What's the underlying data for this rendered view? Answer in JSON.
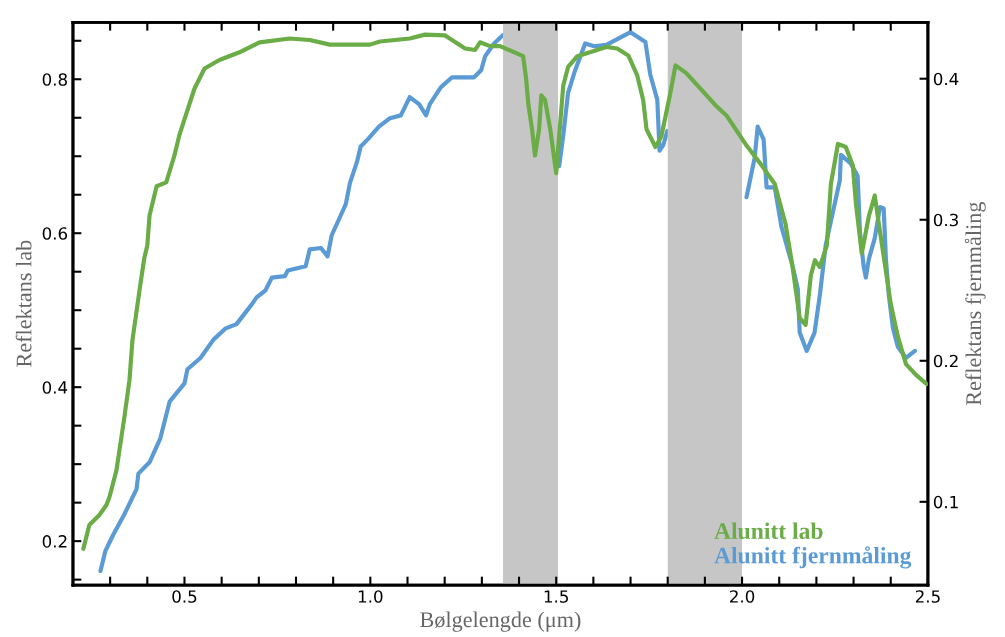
{
  "chart_data": {
    "type": "line",
    "xlabel": "Bølgelengde (μm)",
    "ylabel": "Reflektans lab",
    "y2label": "Reflektans fjernmåling",
    "xlim": [
      0.2,
      2.5
    ],
    "ylim": [
      0.143,
      0.874
    ],
    "y2lim": [
      0.041,
      0.44
    ],
    "xticks": [
      {
        "value": 0.3,
        "label": null
      },
      {
        "value": 0.4,
        "label": null
      },
      {
        "value": 0.5,
        "label": "0.5"
      },
      {
        "value": 0.6,
        "label": null
      },
      {
        "value": 0.7,
        "label": null
      },
      {
        "value": 0.8,
        "label": null
      },
      {
        "value": 0.9,
        "label": null
      },
      {
        "value": 1.0,
        "label": "1.0"
      },
      {
        "value": 1.1,
        "label": null
      },
      {
        "value": 1.2,
        "label": null
      },
      {
        "value": 1.3,
        "label": null
      },
      {
        "value": 1.4,
        "label": null
      },
      {
        "value": 1.5,
        "label": "1.5"
      },
      {
        "value": 1.6,
        "label": null
      },
      {
        "value": 1.7,
        "label": null
      },
      {
        "value": 1.8,
        "label": null
      },
      {
        "value": 1.9,
        "label": null
      },
      {
        "value": 2.0,
        "label": "2.0"
      },
      {
        "value": 2.1,
        "label": null
      },
      {
        "value": 2.2,
        "label": null
      },
      {
        "value": 2.3,
        "label": null
      },
      {
        "value": 2.4,
        "label": null
      },
      {
        "value": 2.5,
        "label": "2.5"
      }
    ],
    "yticks": [
      {
        "value": 0.15,
        "label": null
      },
      {
        "value": 0.2,
        "label": "0.2"
      },
      {
        "value": 0.25,
        "label": null
      },
      {
        "value": 0.3,
        "label": null
      },
      {
        "value": 0.35,
        "label": null
      },
      {
        "value": 0.4,
        "label": "0.4"
      },
      {
        "value": 0.45,
        "label": null
      },
      {
        "value": 0.5,
        "label": null
      },
      {
        "value": 0.55,
        "label": null
      },
      {
        "value": 0.6,
        "label": "0.6"
      },
      {
        "value": 0.65,
        "label": null
      },
      {
        "value": 0.7,
        "label": null
      },
      {
        "value": 0.75,
        "label": null
      },
      {
        "value": 0.8,
        "label": "0.8"
      },
      {
        "value": 0.85,
        "label": null
      }
    ],
    "y2ticks": [
      0.1,
      0.2,
      0.3,
      0.4
    ],
    "bands": [
      {
        "axis": "x",
        "from": 1.357,
        "to": 1.505,
        "color": "#c6c6c6"
      },
      {
        "axis": "x",
        "from": 1.8,
        "to": 2.0,
        "color": "#c6c6c6"
      }
    ],
    "grid": false,
    "legend": "bottom right",
    "line_style": "solid",
    "marker": "none",
    "series": [
      {
        "name": "Alunitt lab",
        "color": "#6aac46",
        "x": [
          0.228,
          0.244,
          0.271,
          0.29,
          0.298,
          0.317,
          0.325,
          0.338,
          0.352,
          0.36,
          0.379,
          0.392,
          0.4,
          0.406,
          0.425,
          0.451,
          0.473,
          0.486,
          0.508,
          0.527,
          0.554,
          0.594,
          0.648,
          0.702,
          0.783,
          0.837,
          0.891,
          0.999,
          1.026,
          1.106,
          1.147,
          1.201,
          1.255,
          1.282,
          1.295,
          1.322,
          1.349,
          1.411,
          1.419,
          1.425,
          1.435,
          1.443,
          1.454,
          1.46,
          1.47,
          1.484,
          1.5,
          1.519,
          1.532,
          1.557,
          1.597,
          1.635,
          1.664,
          1.694,
          1.718,
          1.734,
          1.743,
          1.767,
          1.783,
          1.807,
          1.821,
          1.85,
          1.88,
          1.929,
          1.958,
          2.009,
          2.047,
          2.088,
          2.117,
          2.136,
          2.155,
          2.171,
          2.185,
          2.196,
          2.209,
          2.228,
          2.239,
          2.258,
          2.279,
          2.298,
          2.306,
          2.322,
          2.341,
          2.357,
          2.365,
          2.381,
          2.4,
          2.419,
          2.441,
          2.468,
          2.497
        ],
        "values": [
          0.19,
          0.221,
          0.234,
          0.247,
          0.257,
          0.292,
          0.318,
          0.36,
          0.409,
          0.461,
          0.526,
          0.568,
          0.584,
          0.623,
          0.661,
          0.666,
          0.701,
          0.727,
          0.76,
          0.788,
          0.814,
          0.825,
          0.835,
          0.848,
          0.853,
          0.851,
          0.845,
          0.845,
          0.849,
          0.853,
          0.858,
          0.857,
          0.84,
          0.838,
          0.848,
          0.843,
          0.843,
          0.83,
          0.801,
          0.768,
          0.735,
          0.701,
          0.735,
          0.779,
          0.773,
          0.735,
          0.678,
          0.792,
          0.816,
          0.83,
          0.836,
          0.842,
          0.84,
          0.831,
          0.805,
          0.773,
          0.735,
          0.712,
          0.726,
          0.782,
          0.818,
          0.808,
          0.792,
          0.766,
          0.753,
          0.716,
          0.692,
          0.664,
          0.612,
          0.556,
          0.49,
          0.481,
          0.545,
          0.565,
          0.556,
          0.584,
          0.664,
          0.716,
          0.712,
          0.688,
          0.64,
          0.574,
          0.622,
          0.649,
          0.622,
          0.57,
          0.508,
          0.466,
          0.43,
          0.416,
          0.404
        ]
      },
      {
        "name": "Alunitt fjernmåling",
        "color": "#5b9bd5",
        "axis": "y2",
        "x": [
          0.274,
          0.287,
          0.309,
          0.338,
          0.371,
          0.376,
          0.406,
          0.435,
          0.46,
          0.5,
          0.508,
          0.543,
          0.578,
          0.611,
          0.64,
          0.681,
          0.694,
          0.718,
          0.735,
          0.77,
          0.778,
          0.826,
          0.837,
          0.867,
          0.885,
          0.896,
          0.915,
          0.934,
          0.945,
          0.964,
          0.974,
          0.993,
          1.023,
          1.053,
          1.082,
          1.106,
          1.131,
          1.15,
          1.16,
          1.19,
          1.22,
          1.279,
          1.298,
          1.309,
          1.333,
          1.357,
          1.43,
          1.508,
          1.519,
          1.532,
          1.551,
          1.578,
          1.602,
          1.635,
          1.7,
          1.74,
          1.753,
          1.772,
          1.778,
          1.788,
          1.799,
          1.9,
          2.012,
          2.034,
          2.042,
          2.058,
          2.066,
          2.088,
          2.106,
          2.136,
          2.15,
          2.155,
          2.174,
          2.195,
          2.209,
          2.225,
          2.244,
          2.263,
          2.266,
          2.292,
          2.311,
          2.317,
          2.327,
          2.333,
          2.341,
          2.357,
          2.371,
          2.381,
          2.387,
          2.395,
          2.406,
          2.419,
          2.441,
          2.465
        ],
        "values": [
          0.051,
          0.065,
          0.077,
          0.091,
          0.109,
          0.12,
          0.128,
          0.145,
          0.171,
          0.184,
          0.194,
          0.202,
          0.215,
          0.223,
          0.226,
          0.24,
          0.245,
          0.25,
          0.259,
          0.26,
          0.264,
          0.267,
          0.279,
          0.28,
          0.274,
          0.289,
          0.3,
          0.311,
          0.326,
          0.341,
          0.352,
          0.357,
          0.366,
          0.372,
          0.374,
          0.387,
          0.382,
          0.374,
          0.382,
          0.394,
          0.401,
          0.401,
          0.406,
          0.416,
          0.425,
          0.431,
          null,
          0.338,
          0.36,
          0.39,
          0.406,
          0.425,
          0.423,
          0.424,
          0.433,
          0.426,
          0.403,
          0.385,
          0.349,
          0.353,
          0.363,
          null,
          0.316,
          0.344,
          0.366,
          0.357,
          0.323,
          0.323,
          0.295,
          0.267,
          0.251,
          0.22,
          0.207,
          0.22,
          0.246,
          0.282,
          0.305,
          0.328,
          0.346,
          0.34,
          0.331,
          0.292,
          0.267,
          0.259,
          0.272,
          0.287,
          0.309,
          0.308,
          0.272,
          0.246,
          0.223,
          0.21,
          0.202,
          0.207
        ]
      }
    ]
  }
}
